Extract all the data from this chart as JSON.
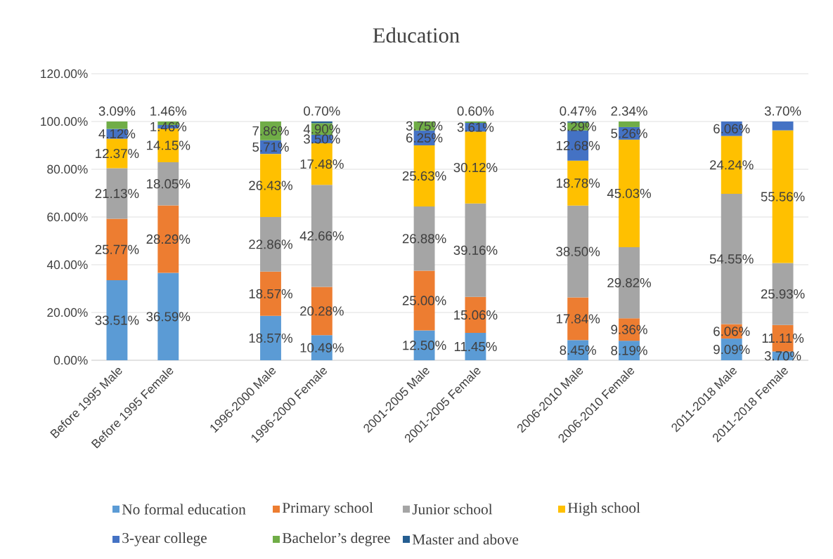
{
  "chart_data": {
    "type": "bar",
    "title": "Education",
    "stacked": true,
    "grid": "y",
    "legend": "bottom",
    "categories": [
      "Before 1995 Male",
      "Before 1995 Female",
      null,
      "1996-2000 Male",
      "1996-2000 Female",
      null,
      "2001-2005 Male",
      "2001-2005 Female",
      null,
      "2006-2010 Male",
      "2006-2010 Female",
      null,
      "2011-2018 Male",
      "2011-2018 Female"
    ],
    "ylim": [
      0,
      120
    ],
    "yticks": [
      {
        "value": 0,
        "label": "0.00%"
      },
      {
        "value": 20,
        "label": "20.00%"
      },
      {
        "value": 40,
        "label": "40.00%"
      },
      {
        "value": 60,
        "label": "60.00%"
      },
      {
        "value": 80,
        "label": "80.00%"
      },
      {
        "value": 100,
        "label": "100.00%"
      },
      {
        "value": 120,
        "label": "120.00%"
      }
    ],
    "series": [
      {
        "name": "No formal education",
        "color": "#5b9bd5",
        "values": [
          33.51,
          36.59,
          null,
          18.57,
          10.49,
          null,
          12.5,
          11.45,
          null,
          8.45,
          8.19,
          null,
          9.09,
          3.7
        ],
        "value_labels": [
          "33.51%",
          "36.59%",
          null,
          "18.57%",
          "10.49%",
          null,
          "12.50%",
          "11.45%",
          null,
          "8.45%",
          "8.19%",
          null,
          "9.09%",
          "3.70%"
        ]
      },
      {
        "name": "Primary school",
        "color": "#ed7d31",
        "values": [
          25.77,
          28.29,
          null,
          18.57,
          20.28,
          null,
          25.0,
          15.06,
          null,
          17.84,
          9.36,
          null,
          6.06,
          11.11
        ],
        "value_labels": [
          "25.77%",
          "28.29%",
          null,
          "18.57%",
          "20.28%",
          null,
          "25.00%",
          "15.06%",
          null,
          "17.84%",
          "9.36%",
          null,
          "6.06%",
          "11.11%"
        ]
      },
      {
        "name": "Junior school",
        "color": "#a5a5a5",
        "values": [
          21.13,
          18.05,
          null,
          22.86,
          42.66,
          null,
          26.88,
          39.16,
          null,
          38.5,
          29.82,
          null,
          54.55,
          25.93
        ],
        "value_labels": [
          "21.13%",
          "18.05%",
          null,
          "22.86%",
          "42.66%",
          null,
          "26.88%",
          "39.16%",
          null,
          "38.50%",
          "29.82%",
          null,
          "54.55%",
          "25.93%"
        ]
      },
      {
        "name": "High school",
        "color": "#ffc000",
        "values": [
          12.37,
          14.15,
          null,
          26.43,
          17.48,
          null,
          25.63,
          30.12,
          null,
          18.78,
          45.03,
          null,
          24.24,
          55.56
        ],
        "value_labels": [
          "12.37%",
          "14.15%",
          null,
          "26.43%",
          "17.48%",
          null,
          "25.63%",
          "30.12%",
          null,
          "18.78%",
          "45.03%",
          null,
          "24.24%",
          "55.56%"
        ]
      },
      {
        "name": "3-year college",
        "color": "#4472c4",
        "values": [
          4.12,
          1.46,
          null,
          5.71,
          3.5,
          null,
          6.25,
          3.61,
          null,
          12.68,
          5.26,
          null,
          6.06,
          3.7
        ],
        "value_labels": [
          "4.12%",
          "1.46%",
          null,
          "5.71%",
          "3.50%",
          null,
          "6.25%",
          "3.61%",
          null,
          "12.68%",
          "5.26%",
          null,
          "6.06%",
          "3.70%"
        ]
      },
      {
        "name": "Bachelor’s degree",
        "color": "#70ad47",
        "values": [
          3.09,
          1.46,
          null,
          7.86,
          4.9,
          null,
          3.75,
          0.6,
          null,
          3.29,
          2.34,
          null,
          null,
          null
        ],
        "value_labels": [
          "3.09%",
          "1.46%",
          null,
          "7.86%",
          "4.90%",
          null,
          "3.75%",
          "0.60%",
          null,
          "3.29%",
          "2.34%",
          null,
          null,
          null
        ]
      },
      {
        "name": "Master and above",
        "color": "#255e91",
        "values": [
          null,
          null,
          null,
          null,
          0.7,
          null,
          null,
          null,
          null,
          0.47,
          null,
          null,
          null,
          null
        ],
        "value_labels": [
          null,
          null,
          null,
          null,
          "0.70%",
          null,
          null,
          null,
          null,
          "0.47%",
          null,
          null,
          null,
          null
        ]
      }
    ]
  }
}
